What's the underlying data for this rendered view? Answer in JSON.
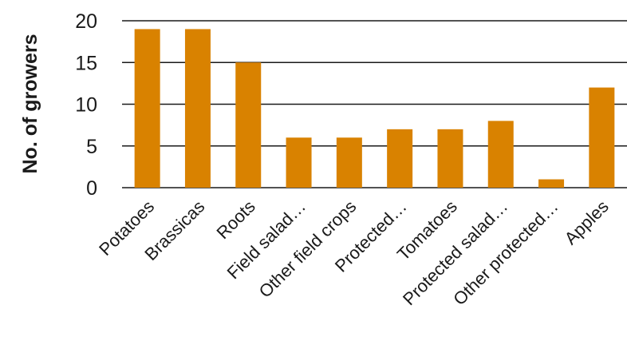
{
  "chart_data": {
    "type": "bar",
    "title": "",
    "xlabel": "",
    "ylabel": "No. of growers",
    "categories": [
      "Potatoes",
      "Brassicas",
      "Roots",
      "Field salad…",
      "Other field crops",
      "Protected…",
      "Tomatoes",
      "Protected salad…",
      "Other protected…",
      "Apples"
    ],
    "values": [
      19,
      19,
      15,
      6,
      6,
      7,
      7,
      8,
      1,
      12
    ],
    "ylim": [
      0,
      20
    ],
    "yticks": [
      "0",
      "5",
      "10",
      "15",
      "20"
    ],
    "grid": true,
    "legend": "none",
    "bar_color": "#D98200",
    "grid_color": "#1a1a1a"
  }
}
